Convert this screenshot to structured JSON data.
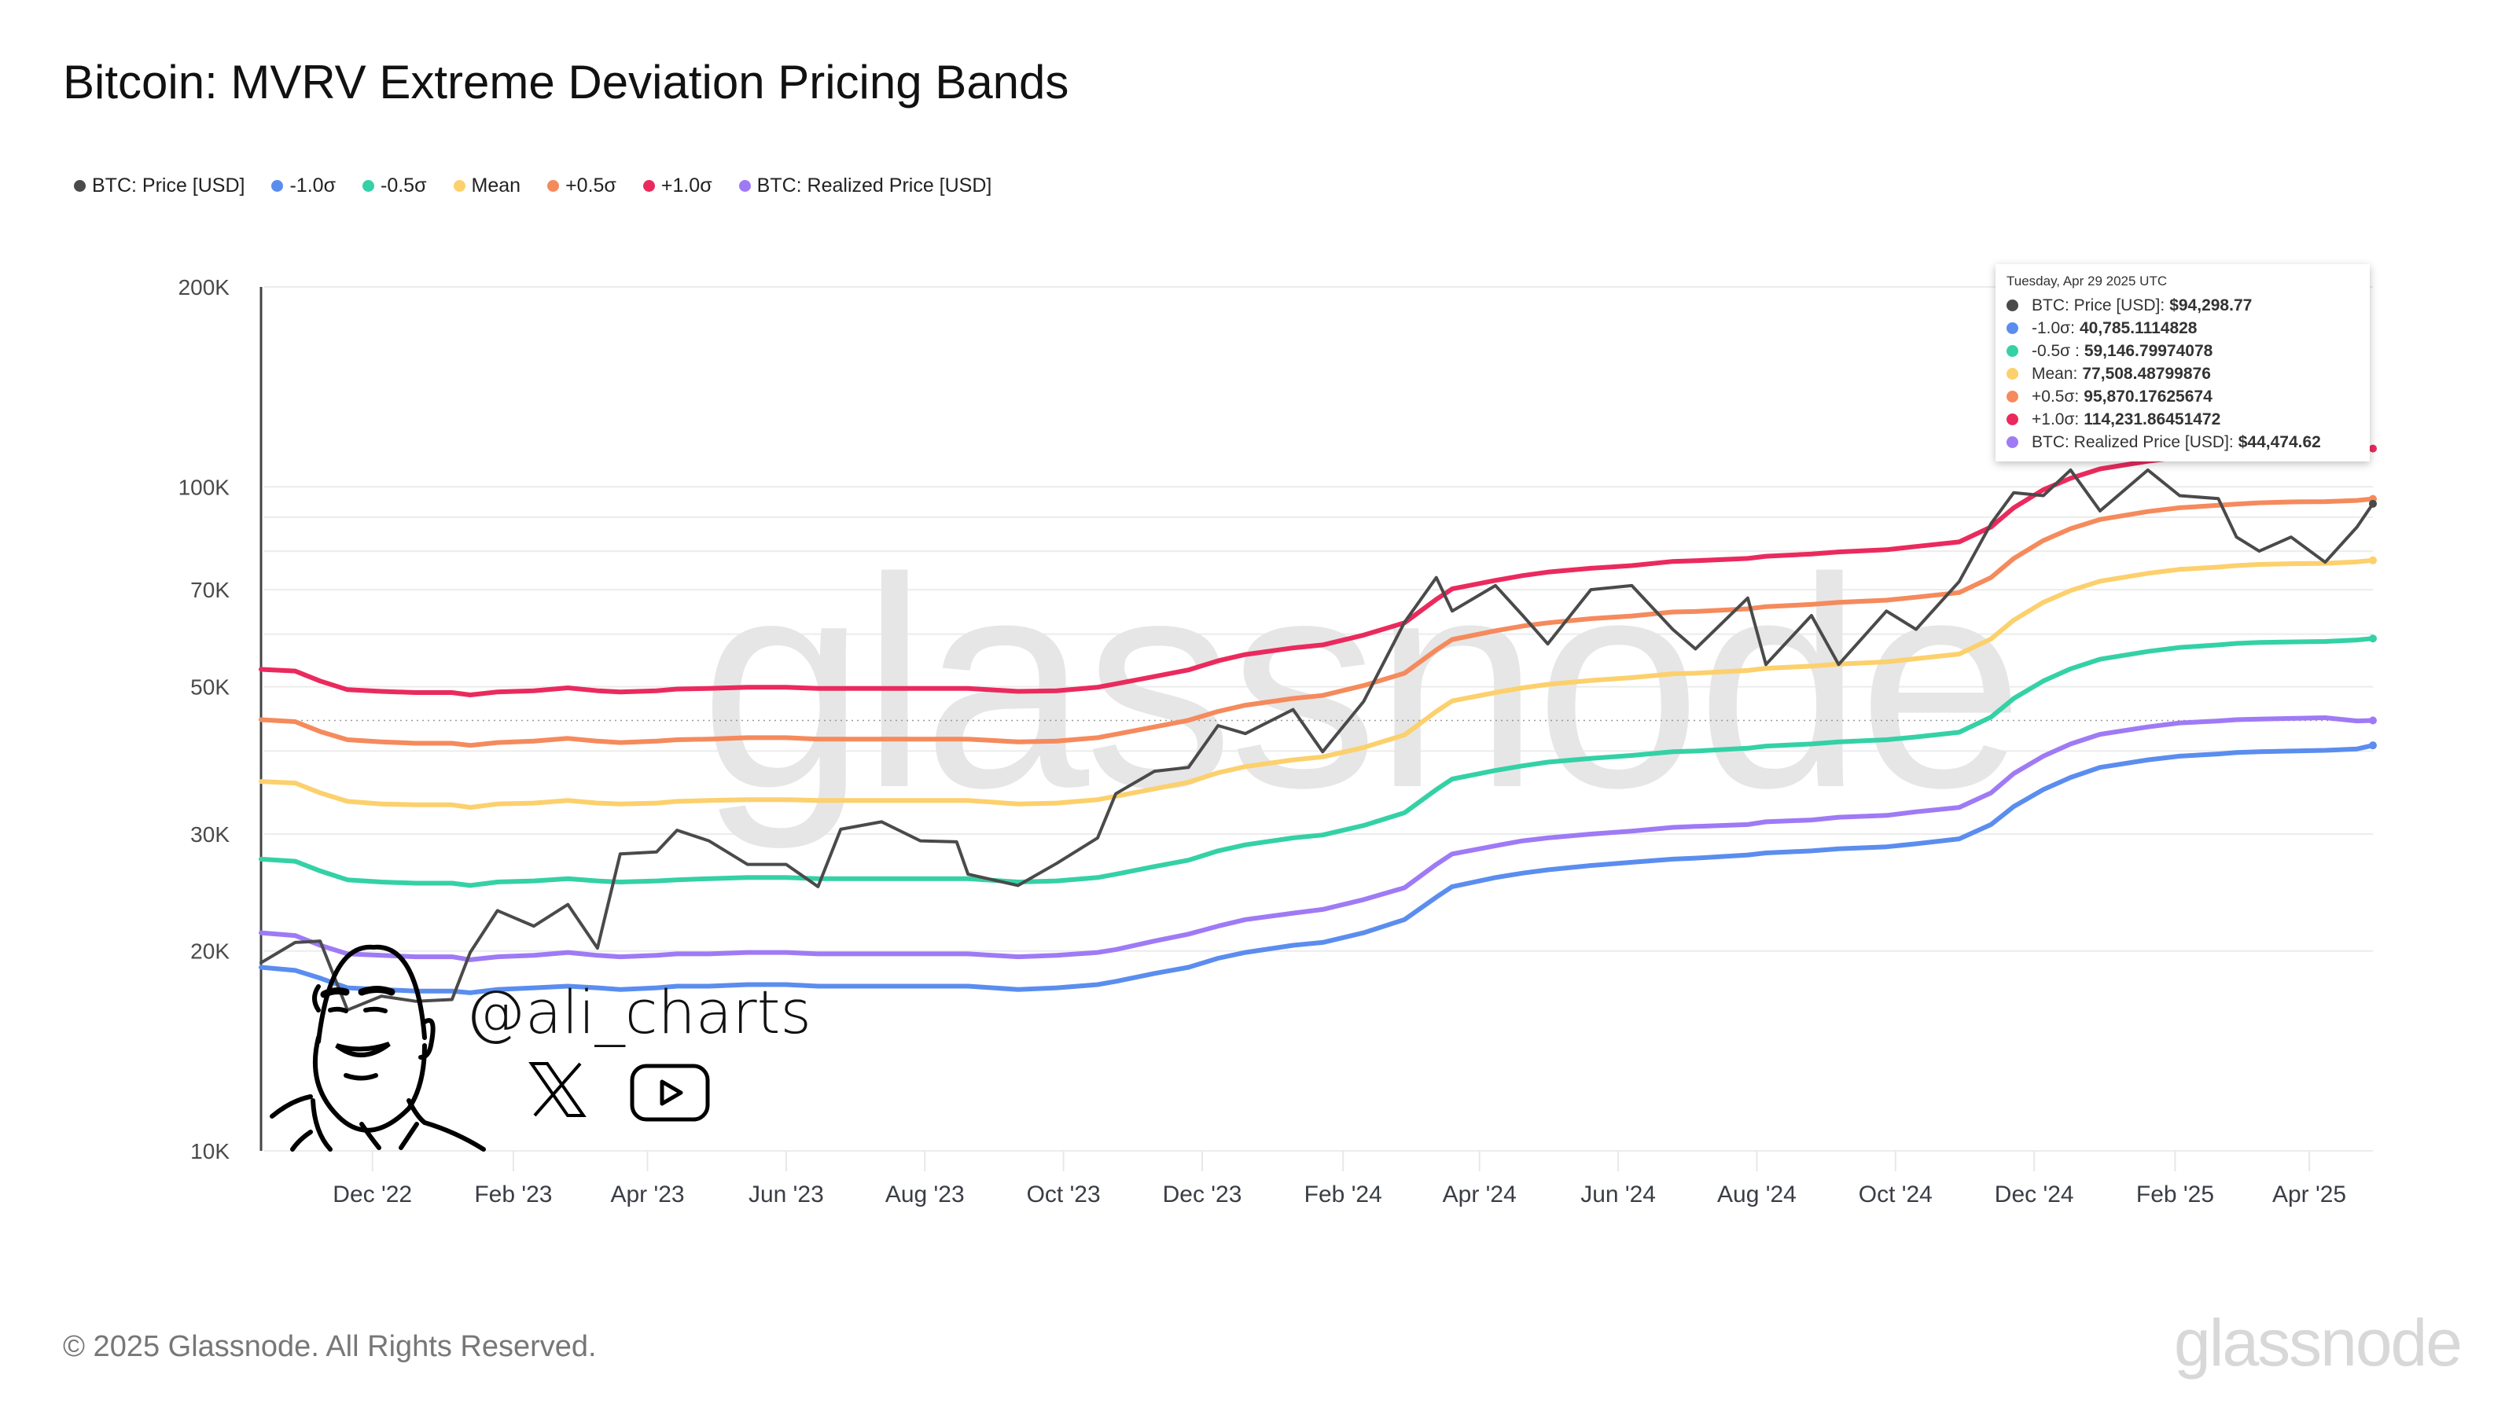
{
  "title": "Bitcoin: MVRV Extreme Deviation Pricing Bands",
  "legend": [
    {
      "label": "BTC: Price [USD]",
      "color": "#4a4a4a"
    },
    {
      "label": "-1.0σ",
      "color": "#5b8def"
    },
    {
      "label": "-0.5σ",
      "color": "#34d1a6"
    },
    {
      "label": "Mean",
      "color": "#fcd06c"
    },
    {
      "label": "+0.5σ",
      "color": "#f58a5c"
    },
    {
      "label": "+1.0σ",
      "color": "#ea2a5d"
    },
    {
      "label": "BTC: Realized Price [USD]",
      "color": "#9f7af5"
    }
  ],
  "tooltip": {
    "date": "Tuesday, Apr 29 2025 UTC",
    "rows": [
      {
        "label": "BTC: Price [USD]:",
        "value": "$94,298.77",
        "color": "#4a4a4a"
      },
      {
        "label": "-1.0σ:",
        "value": "40,785.1114828",
        "color": "#5b8def"
      },
      {
        "label": "-0.5σ :",
        "value": "59,146.79974078",
        "color": "#34d1a6"
      },
      {
        "label": "Mean:",
        "value": "77,508.48799876",
        "color": "#fcd06c"
      },
      {
        "label": "+0.5σ:",
        "value": "95,870.17625674",
        "color": "#f58a5c"
      },
      {
        "label": "+1.0σ:",
        "value": "114,231.86451472",
        "color": "#ea2a5d"
      },
      {
        "label": "BTC: Realized Price [USD]:",
        "value": "$44,474.62",
        "color": "#9f7af5"
      }
    ]
  },
  "watermark": {
    "handle": "@ali_charts",
    "chart_watermark": "glassnode"
  },
  "footer": {
    "copyright": "© 2025 Glassnode. All Rights Reserved.",
    "logo": "glassnode"
  },
  "chart_data": {
    "type": "line",
    "title": "Bitcoin: MVRV Extreme Deviation Pricing Bands",
    "xlabel": "",
    "ylabel": "",
    "yscale": "log",
    "ylim": [
      10000,
      200000
    ],
    "xlim": [
      "2022-10-13",
      "2025-04-29"
    ],
    "grid": true,
    "legend_position": "top-left",
    "y_ticks": [
      {
        "value": 200000,
        "label": "200K"
      },
      {
        "value": 100000,
        "label": "100K"
      },
      {
        "value": 70000,
        "label": "70K"
      },
      {
        "value": 50000,
        "label": "50K"
      },
      {
        "value": 30000,
        "label": "30K"
      },
      {
        "value": 20000,
        "label": "20K"
      },
      {
        "value": 10000,
        "label": "10K"
      }
    ],
    "y_minor_gridlines": [
      90000,
      80000,
      60000,
      40000
    ],
    "x_ticks": [
      {
        "date": "2022-12-01",
        "label": "Dec '22"
      },
      {
        "date": "2023-02-01",
        "label": "Feb '23"
      },
      {
        "date": "2023-04-01",
        "label": "Apr '23"
      },
      {
        "date": "2023-06-01",
        "label": "Jun '23"
      },
      {
        "date": "2023-08-01",
        "label": "Aug '23"
      },
      {
        "date": "2023-10-01",
        "label": "Oct '23"
      },
      {
        "date": "2023-12-01",
        "label": "Dec '23"
      },
      {
        "date": "2024-02-01",
        "label": "Feb '24"
      },
      {
        "date": "2024-04-01",
        "label": "Apr '24"
      },
      {
        "date": "2024-06-01",
        "label": "Jun '24"
      },
      {
        "date": "2024-08-01",
        "label": "Aug '24"
      },
      {
        "date": "2024-10-01",
        "label": "Oct '24"
      },
      {
        "date": "2024-12-01",
        "label": "Dec '24"
      },
      {
        "date": "2025-02-01",
        "label": "Feb '25"
      },
      {
        "date": "2025-04-01",
        "label": "Apr '25"
      }
    ],
    "crosshair_value": 44474.62,
    "x": [
      "2022-10-13",
      "2022-10-28",
      "2022-11-08",
      "2022-11-20",
      "2022-12-05",
      "2022-12-20",
      "2023-01-05",
      "2023-01-13",
      "2023-01-25",
      "2023-02-10",
      "2023-02-25",
      "2023-03-10",
      "2023-03-20",
      "2023-04-05",
      "2023-04-14",
      "2023-04-28",
      "2023-05-15",
      "2023-06-01",
      "2023-06-15",
      "2023-06-25",
      "2023-07-13",
      "2023-07-30",
      "2023-08-15",
      "2023-08-20",
      "2023-09-11",
      "2023-09-28",
      "2023-10-16",
      "2023-10-24",
      "2023-11-10",
      "2023-11-25",
      "2023-12-08",
      "2023-12-20",
      "2024-01-10",
      "2024-01-23",
      "2024-02-10",
      "2024-02-28",
      "2024-03-13",
      "2024-03-20",
      "2024-04-08",
      "2024-04-20",
      "2024-05-01",
      "2024-05-20",
      "2024-06-07",
      "2024-06-25",
      "2024-07-05",
      "2024-07-28",
      "2024-08-05",
      "2024-08-25",
      "2024-09-06",
      "2024-09-27",
      "2024-10-10",
      "2024-10-29",
      "2024-11-12",
      "2024-11-22",
      "2024-12-05",
      "2024-12-17",
      "2024-12-30",
      "2025-01-20",
      "2025-02-03",
      "2025-02-20",
      "2025-02-28",
      "2025-03-10",
      "2025-03-24",
      "2025-04-08",
      "2025-04-22",
      "2025-04-29"
    ],
    "series": [
      {
        "name": "BTC: Price [USD]",
        "color": "#4a4a4a",
        "values": [
          19200,
          20600,
          20700,
          16300,
          17100,
          16800,
          16900,
          19900,
          23000,
          21800,
          23500,
          20200,
          28000,
          28200,
          30400,
          29300,
          27000,
          27000,
          25000,
          30500,
          31300,
          29300,
          29200,
          26100,
          25100,
          27100,
          29600,
          34500,
          37300,
          37800,
          43700,
          42500,
          46200,
          39900,
          47500,
          62500,
          73000,
          65000,
          71000,
          64000,
          58000,
          70000,
          71000,
          61000,
          57000,
          68000,
          54000,
          64000,
          54000,
          65000,
          61000,
          72000,
          88000,
          98000,
          97000,
          106000,
          92000,
          106000,
          97000,
          96000,
          84000,
          80000,
          84000,
          77000,
          87000,
          94300
        ]
      },
      {
        "name": "-1.0σ",
        "color": "#5b8def",
        "values": [
          18900,
          18700,
          18200,
          17600,
          17500,
          17400,
          17400,
          17300,
          17500,
          17600,
          17700,
          17600,
          17500,
          17600,
          17700,
          17700,
          17800,
          17800,
          17700,
          17700,
          17700,
          17700,
          17700,
          17700,
          17500,
          17600,
          17800,
          18000,
          18500,
          18900,
          19500,
          19900,
          20400,
          20600,
          21300,
          22300,
          24100,
          25000,
          25800,
          26200,
          26500,
          26900,
          27200,
          27500,
          27600,
          27900,
          28100,
          28300,
          28500,
          28700,
          29000,
          29500,
          31000,
          33000,
          35000,
          36500,
          37800,
          38800,
          39300,
          39600,
          39800,
          39900,
          40000,
          40100,
          40300,
          40800
        ]
      },
      {
        "name": "-0.5σ",
        "color": "#34d1a6",
        "values": [
          27500,
          27300,
          26400,
          25600,
          25400,
          25300,
          25300,
          25100,
          25400,
          25500,
          25700,
          25500,
          25400,
          25500,
          25600,
          25700,
          25800,
          25800,
          25700,
          25700,
          25700,
          25700,
          25700,
          25700,
          25400,
          25500,
          25800,
          26100,
          26800,
          27400,
          28300,
          28900,
          29600,
          29900,
          30900,
          32300,
          35000,
          36300,
          37400,
          38000,
          38500,
          39000,
          39400,
          39900,
          40000,
          40400,
          40700,
          41000,
          41300,
          41600,
          42000,
          42700,
          45000,
          48000,
          51000,
          53200,
          55000,
          56500,
          57300,
          57800,
          58100,
          58300,
          58400,
          58500,
          58800,
          59100
        ]
      },
      {
        "name": "Mean",
        "color": "#fcd06c",
        "values": [
          36000,
          35800,
          34600,
          33600,
          33300,
          33200,
          33200,
          32900,
          33300,
          33400,
          33700,
          33400,
          33300,
          33400,
          33600,
          33700,
          33800,
          33800,
          33700,
          33700,
          33700,
          33700,
          33700,
          33700,
          33300,
          33400,
          33800,
          34200,
          35100,
          35900,
          37100,
          37900,
          38800,
          39200,
          40500,
          42300,
          45900,
          47600,
          49000,
          49800,
          50400,
          51100,
          51600,
          52300,
          52400,
          52900,
          53300,
          53700,
          54100,
          54500,
          55100,
          56000,
          59000,
          63000,
          67000,
          69800,
          72100,
          74100,
          75100,
          75700,
          76100,
          76400,
          76600,
          76700,
          77100,
          77500
        ]
      },
      {
        "name": "+0.5σ",
        "color": "#f58a5c",
        "values": [
          44600,
          44300,
          42800,
          41600,
          41300,
          41100,
          41100,
          40800,
          41200,
          41400,
          41800,
          41400,
          41200,
          41400,
          41600,
          41700,
          41900,
          41900,
          41700,
          41700,
          41700,
          41700,
          41700,
          41700,
          41300,
          41400,
          41900,
          42400,
          43500,
          44500,
          45900,
          46900,
          48000,
          48500,
          50200,
          52400,
          56800,
          58900,
          60700,
          61700,
          62400,
          63300,
          63900,
          64800,
          64900,
          65500,
          66000,
          66500,
          67000,
          67500,
          68200,
          69300,
          73000,
          78000,
          83000,
          86500,
          89300,
          91800,
          93000,
          93800,
          94200,
          94600,
          94900,
          95000,
          95400,
          95900
        ]
      },
      {
        "name": "+1.0σ",
        "color": "#ea2a5d",
        "values": [
          53100,
          52800,
          51000,
          49500,
          49200,
          49000,
          49000,
          48600,
          49100,
          49300,
          49800,
          49300,
          49100,
          49300,
          49600,
          49700,
          49900,
          49900,
          49700,
          49700,
          49700,
          49700,
          49700,
          49700,
          49200,
          49300,
          49900,
          50500,
          51800,
          53000,
          54700,
          55900,
          57200,
          57800,
          59800,
          62400,
          67700,
          70200,
          72300,
          73500,
          74400,
          75400,
          76100,
          77200,
          77400,
          78000,
          78600,
          79200,
          79800,
          80400,
          81300,
          82600,
          87000,
          93000,
          99000,
          103000,
          106400,
          109300,
          110800,
          111700,
          112300,
          112700,
          113000,
          113200,
          113700,
          114200
        ]
      },
      {
        "name": "BTC: Realized Price [USD]",
        "color": "#9f7af5",
        "values": [
          21300,
          21100,
          20400,
          19800,
          19700,
          19600,
          19600,
          19400,
          19600,
          19700,
          19900,
          19700,
          19600,
          19700,
          19800,
          19800,
          19900,
          19900,
          19800,
          19800,
          19800,
          19800,
          19800,
          19800,
          19600,
          19700,
          19900,
          20100,
          20700,
          21200,
          21800,
          22300,
          22800,
          23100,
          23900,
          24900,
          27000,
          28000,
          28800,
          29300,
          29600,
          30000,
          30300,
          30700,
          30800,
          31000,
          31300,
          31500,
          31800,
          32000,
          32400,
          32900,
          34600,
          37000,
          39300,
          41000,
          42400,
          43500,
          44100,
          44400,
          44600,
          44700,
          44800,
          44900,
          44400,
          44475
        ]
      }
    ]
  }
}
